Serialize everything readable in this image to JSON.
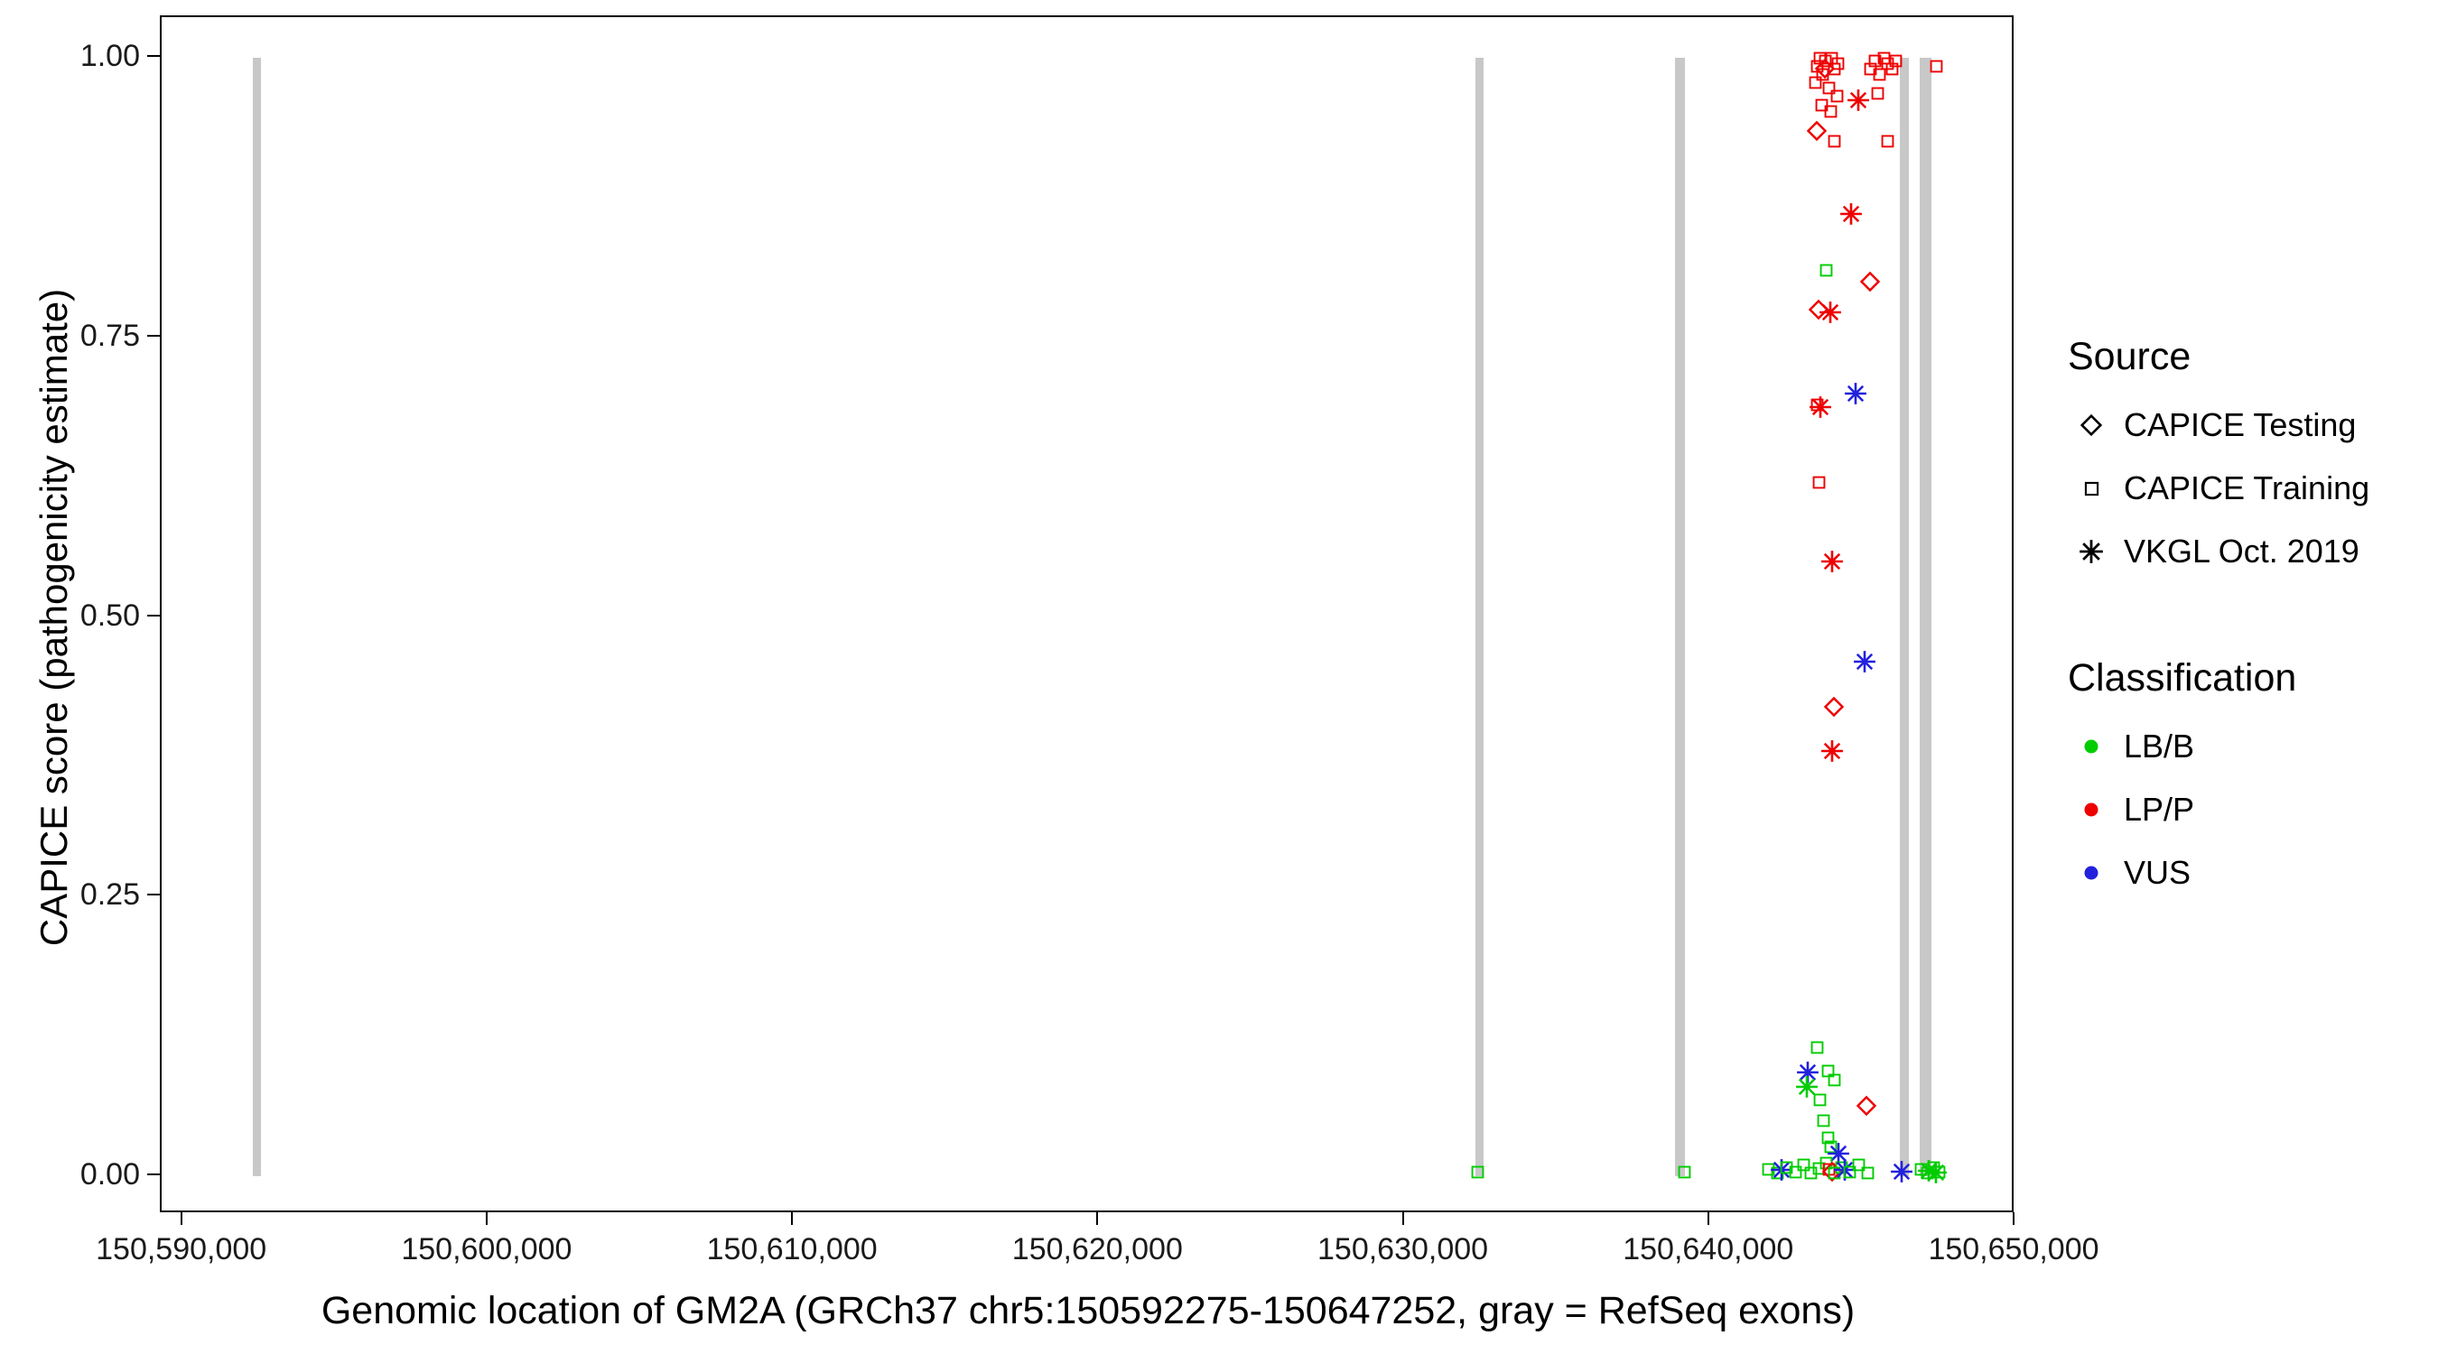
{
  "colors": {
    "LB/B": "#00CC00",
    "LP/P": "#EE0000",
    "VUS": "#2222DD",
    "exon": "#C8C8C8",
    "axis": "#000000"
  },
  "legend": {
    "source": {
      "title": "Source",
      "items": [
        {
          "label": "CAPICE Testing",
          "shape": "diamond"
        },
        {
          "label": "CAPICE Training",
          "shape": "square"
        },
        {
          "label": "VKGL Oct. 2019",
          "shape": "star"
        }
      ]
    },
    "classification": {
      "title": "Classification",
      "items": [
        {
          "label": "LB/B",
          "color": "#00CC00"
        },
        {
          "label": "LP/P",
          "color": "#EE0000"
        },
        {
          "label": "VUS",
          "color": "#2222DD"
        }
      ]
    }
  },
  "chart_data": {
    "type": "scatter",
    "title": "",
    "xlabel": "Genomic location of GM2A (GRCh37 chr5:150592275-150647252, gray = RefSeq exons)",
    "ylabel": "CAPICE score (pathogenicity estimate)",
    "xlim": [
      150589300,
      150650000
    ],
    "ylim": [
      0,
      1
    ],
    "grid": false,
    "legend_position": "right",
    "xticks": [
      {
        "value": 150590000,
        "label": "150,590,000"
      },
      {
        "value": 150600000,
        "label": "150,600,000"
      },
      {
        "value": 150610000,
        "label": "150,610,000"
      },
      {
        "value": 150620000,
        "label": "150,620,000"
      },
      {
        "value": 150630000,
        "label": "150,630,000"
      },
      {
        "value": 150640000,
        "label": "150,640,000"
      },
      {
        "value": 150650000,
        "label": "150,650,000"
      }
    ],
    "yticks": [
      {
        "value": 0.0,
        "label": "0.00"
      },
      {
        "value": 0.25,
        "label": "0.25"
      },
      {
        "value": 0.5,
        "label": "0.50"
      },
      {
        "value": 0.75,
        "label": "0.75"
      },
      {
        "value": 1.0,
        "label": "1.00"
      }
    ],
    "exons": [
      {
        "start": 150592275,
        "end": 150592560
      },
      {
        "start": 150632329,
        "end": 150632580
      },
      {
        "start": 150638856,
        "end": 150639180
      },
      {
        "start": 150646220,
        "end": 150646520
      },
      {
        "start": 150646860,
        "end": 150647252
      }
    ],
    "source_shapes": {
      "testing": "diamond",
      "training": "square",
      "vkgl": "star"
    },
    "points": [
      {
        "x": 150643450,
        "y": 0.978,
        "src": "training",
        "cls": "LP/P"
      },
      {
        "x": 150643520,
        "y": 0.992,
        "src": "training",
        "cls": "LP/P"
      },
      {
        "x": 150643600,
        "y": 1.0,
        "src": "training",
        "cls": "LP/P"
      },
      {
        "x": 150643700,
        "y": 0.985,
        "src": "training",
        "cls": "LP/P"
      },
      {
        "x": 150643790,
        "y": 0.997,
        "src": "training",
        "cls": "LP/P"
      },
      {
        "x": 150643880,
        "y": 0.973,
        "src": "training",
        "cls": "LP/P"
      },
      {
        "x": 150643980,
        "y": 1.0,
        "src": "training",
        "cls": "LP/P"
      },
      {
        "x": 150644080,
        "y": 0.99,
        "src": "training",
        "cls": "LP/P"
      },
      {
        "x": 150644180,
        "y": 0.995,
        "src": "training",
        "cls": "LP/P"
      },
      {
        "x": 150643660,
        "y": 0.958,
        "src": "training",
        "cls": "LP/P"
      },
      {
        "x": 150643960,
        "y": 0.952,
        "src": "training",
        "cls": "LP/P"
      },
      {
        "x": 150644160,
        "y": 0.966,
        "src": "training",
        "cls": "LP/P"
      },
      {
        "x": 150644060,
        "y": 0.925,
        "src": "training",
        "cls": "LP/P"
      },
      {
        "x": 150645250,
        "y": 0.99,
        "src": "training",
        "cls": "LP/P"
      },
      {
        "x": 150645400,
        "y": 0.997,
        "src": "training",
        "cls": "LP/P"
      },
      {
        "x": 150645540,
        "y": 0.985,
        "src": "training",
        "cls": "LP/P"
      },
      {
        "x": 150645690,
        "y": 1.0,
        "src": "training",
        "cls": "LP/P"
      },
      {
        "x": 150645830,
        "y": 0.995,
        "src": "training",
        "cls": "LP/P"
      },
      {
        "x": 150645960,
        "y": 0.99,
        "src": "training",
        "cls": "LP/P"
      },
      {
        "x": 150646090,
        "y": 0.997,
        "src": "training",
        "cls": "LP/P"
      },
      {
        "x": 150645500,
        "y": 0.968,
        "src": "training",
        "cls": "LP/P"
      },
      {
        "x": 150645830,
        "y": 0.925,
        "src": "training",
        "cls": "LP/P"
      },
      {
        "x": 150647400,
        "y": 0.992,
        "src": "training",
        "cls": "LP/P"
      },
      {
        "x": 150643500,
        "y": 0.935,
        "src": "testing",
        "cls": "LP/P"
      },
      {
        "x": 150643760,
        "y": 0.99,
        "src": "testing",
        "cls": "LP/P"
      },
      {
        "x": 150644870,
        "y": 0.962,
        "src": "vkgl",
        "cls": "LP/P"
      },
      {
        "x": 150644620,
        "y": 0.86,
        "src": "vkgl",
        "cls": "LP/P"
      },
      {
        "x": 150643800,
        "y": 0.81,
        "src": "training",
        "cls": "LB/B"
      },
      {
        "x": 150645230,
        "y": 0.8,
        "src": "testing",
        "cls": "LP/P"
      },
      {
        "x": 150643550,
        "y": 0.775,
        "src": "testing",
        "cls": "LP/P"
      },
      {
        "x": 150643950,
        "y": 0.772,
        "src": "vkgl",
        "cls": "LP/P"
      },
      {
        "x": 150644760,
        "y": 0.7,
        "src": "vkgl",
        "cls": "VUS"
      },
      {
        "x": 150643610,
        "y": 0.688,
        "src": "vkgl",
        "cls": "LP/P"
      },
      {
        "x": 150643500,
        "y": 0.69,
        "src": "training",
        "cls": "LP/P"
      },
      {
        "x": 150643560,
        "y": 0.62,
        "src": "training",
        "cls": "LP/P"
      },
      {
        "x": 150644010,
        "y": 0.55,
        "src": "vkgl",
        "cls": "LP/P"
      },
      {
        "x": 150645060,
        "y": 0.46,
        "src": "vkgl",
        "cls": "VUS"
      },
      {
        "x": 150644060,
        "y": 0.42,
        "src": "testing",
        "cls": "LP/P"
      },
      {
        "x": 150644010,
        "y": 0.38,
        "src": "vkgl",
        "cls": "LP/P"
      },
      {
        "x": 150643500,
        "y": 0.115,
        "src": "training",
        "cls": "LB/B"
      },
      {
        "x": 150643210,
        "y": 0.093,
        "src": "vkgl",
        "cls": "VUS"
      },
      {
        "x": 150643860,
        "y": 0.094,
        "src": "training",
        "cls": "LB/B"
      },
      {
        "x": 150644060,
        "y": 0.086,
        "src": "training",
        "cls": "LB/B"
      },
      {
        "x": 150643160,
        "y": 0.08,
        "src": "vkgl",
        "cls": "LB/B"
      },
      {
        "x": 150643610,
        "y": 0.068,
        "src": "training",
        "cls": "LB/B"
      },
      {
        "x": 150645120,
        "y": 0.063,
        "src": "testing",
        "cls": "LP/P"
      },
      {
        "x": 150643710,
        "y": 0.05,
        "src": "training",
        "cls": "LB/B"
      },
      {
        "x": 150643860,
        "y": 0.034,
        "src": "training",
        "cls": "LB/B"
      },
      {
        "x": 150643960,
        "y": 0.026,
        "src": "training",
        "cls": "LB/B"
      },
      {
        "x": 150644210,
        "y": 0.02,
        "src": "vkgl",
        "cls": "VUS"
      },
      {
        "x": 150632400,
        "y": 0.004,
        "src": "training",
        "cls": "LB/B"
      },
      {
        "x": 150639150,
        "y": 0.004,
        "src": "training",
        "cls": "LB/B"
      },
      {
        "x": 150641900,
        "y": 0.006,
        "src": "training",
        "cls": "LB/B"
      },
      {
        "x": 150642200,
        "y": 0.003,
        "src": "training",
        "cls": "LB/B"
      },
      {
        "x": 150642350,
        "y": 0.006,
        "src": "vkgl",
        "cls": "VUS"
      },
      {
        "x": 150642500,
        "y": 0.008,
        "src": "training",
        "cls": "LB/B"
      },
      {
        "x": 150642800,
        "y": 0.004,
        "src": "training",
        "cls": "LB/B"
      },
      {
        "x": 150643060,
        "y": 0.01,
        "src": "training",
        "cls": "LB/B"
      },
      {
        "x": 150643310,
        "y": 0.003,
        "src": "training",
        "cls": "LB/B"
      },
      {
        "x": 150643560,
        "y": 0.007,
        "src": "training",
        "cls": "LB/B"
      },
      {
        "x": 150643810,
        "y": 0.012,
        "src": "training",
        "cls": "LB/B"
      },
      {
        "x": 150643900,
        "y": 0.006,
        "src": "training",
        "cls": "LP/P"
      },
      {
        "x": 150644000,
        "y": 0.004,
        "src": "testing",
        "cls": "LP/P"
      },
      {
        "x": 150644060,
        "y": 0.003,
        "src": "training",
        "cls": "LB/B"
      },
      {
        "x": 150644310,
        "y": 0.008,
        "src": "training",
        "cls": "LB/B"
      },
      {
        "x": 150644410,
        "y": 0.006,
        "src": "vkgl",
        "cls": "VUS"
      },
      {
        "x": 150644560,
        "y": 0.004,
        "src": "training",
        "cls": "LB/B"
      },
      {
        "x": 150644860,
        "y": 0.01,
        "src": "training",
        "cls": "LB/B"
      },
      {
        "x": 150645160,
        "y": 0.003,
        "src": "training",
        "cls": "LB/B"
      },
      {
        "x": 150646260,
        "y": 0.004,
        "src": "vkgl",
        "cls": "VUS"
      },
      {
        "x": 150646900,
        "y": 0.006,
        "src": "training",
        "cls": "LB/B"
      },
      {
        "x": 150647110,
        "y": 0.003,
        "src": "training",
        "cls": "LB/B"
      },
      {
        "x": 150647160,
        "y": 0.005,
        "src": "vkgl",
        "cls": "LB/B"
      },
      {
        "x": 150647310,
        "y": 0.008,
        "src": "training",
        "cls": "LB/B"
      },
      {
        "x": 150647410,
        "y": 0.003,
        "src": "vkgl",
        "cls": "LB/B"
      },
      {
        "x": 150647500,
        "y": 0.004,
        "src": "training",
        "cls": "LB/B"
      }
    ]
  }
}
